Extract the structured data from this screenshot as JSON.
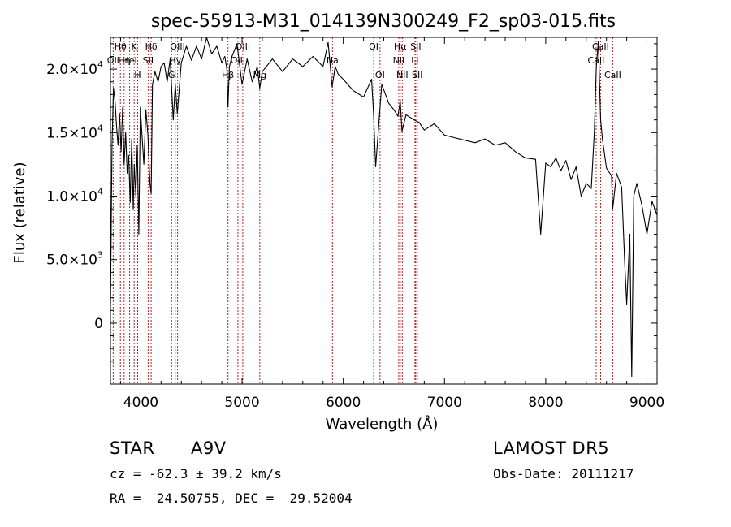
{
  "chart_data": {
    "type": "line",
    "title": "spec-55913-M31_014139N300249_F2_sp03-015.fits",
    "xlabel": "Wavelength (Å)",
    "ylabel": "Flux (relative)",
    "xlim": [
      3700,
      9100
    ],
    "ylim": [
      -4800,
      22500
    ],
    "grid": false,
    "x_ticks": [
      {
        "value": 4000,
        "label": "4000"
      },
      {
        "value": 5000,
        "label": "5000"
      },
      {
        "value": 6000,
        "label": "6000"
      },
      {
        "value": 7000,
        "label": "7000"
      },
      {
        "value": 8000,
        "label": "8000"
      },
      {
        "value": 9000,
        "label": "9000"
      }
    ],
    "y_ticks": [
      {
        "value": 0,
        "mant": "0",
        "exp": ""
      },
      {
        "value": 5000,
        "mant": "5.0×10",
        "exp": "3"
      },
      {
        "value": 10000,
        "mant": "1.0×10",
        "exp": "4"
      },
      {
        "value": 15000,
        "mant": "1.5×10",
        "exp": "4"
      },
      {
        "value": 20000,
        "mant": "2.0×10",
        "exp": "4"
      }
    ],
    "x": [
      3700,
      3715,
      3730,
      3745,
      3760,
      3775,
      3790,
      3805,
      3820,
      3835,
      3850,
      3865,
      3880,
      3895,
      3910,
      3925,
      3935,
      3950,
      3965,
      3980,
      3995,
      4010,
      4030,
      4050,
      4070,
      4090,
      4102,
      4115,
      4140,
      4170,
      4200,
      4230,
      4260,
      4290,
      4320,
      4340,
      4360,
      4400,
      4450,
      4500,
      4550,
      4600,
      4650,
      4700,
      4750,
      4800,
      4830,
      4850,
      4861,
      4875,
      4900,
      4950,
      5000,
      5050,
      5100,
      5150,
      5175,
      5200,
      5300,
      5400,
      5500,
      5600,
      5700,
      5800,
      5850,
      5890,
      5920,
      5950,
      6000,
      6100,
      6200,
      6280,
      6300,
      6320,
      6380,
      6450,
      6500,
      6540,
      6563,
      6580,
      6620,
      6700,
      6750,
      6800,
      6900,
      7000,
      7100,
      7200,
      7300,
      7400,
      7500,
      7600,
      7700,
      7800,
      7900,
      7950,
      8000,
      8050,
      8100,
      8150,
      8200,
      8250,
      8300,
      8350,
      8400,
      8450,
      8480,
      8500,
      8520,
      8542,
      8560,
      8600,
      8650,
      8662,
      8700,
      8750,
      8780,
      8800,
      8830,
      8850,
      8870,
      8900,
      8950,
      9000,
      9050,
      9100
    ],
    "values": [
      1200,
      14000,
      18500,
      17500,
      15500,
      14000,
      16500,
      13500,
      17000,
      12500,
      15000,
      11800,
      13200,
      9500,
      14500,
      9000,
      12500,
      10000,
      14000,
      7000,
      17000,
      15000,
      12500,
      16800,
      14800,
      11000,
      10200,
      18800,
      19800,
      19000,
      20200,
      20500,
      19000,
      20800,
      16000,
      18800,
      16500,
      20500,
      21800,
      20700,
      21800,
      20800,
      22500,
      21200,
      21800,
      20500,
      21000,
      20000,
      17000,
      20200,
      21000,
      22000,
      18800,
      20800,
      19000,
      20200,
      18500,
      19800,
      20800,
      19800,
      20800,
      20200,
      21000,
      20200,
      22100,
      18600,
      20200,
      19600,
      19200,
      18300,
      17800,
      19200,
      16400,
      12300,
      18800,
      17300,
      16800,
      16300,
      17500,
      15100,
      16400,
      16000,
      15800,
      15200,
      15700,
      14800,
      14600,
      14400,
      14200,
      14500,
      14000,
      14200,
      13500,
      13000,
      12900,
      7000,
      12600,
      12300,
      13000,
      12000,
      12800,
      11300,
      12300,
      10000,
      11000,
      10600,
      15000,
      20200,
      22200,
      16000,
      14500,
      12200,
      11600,
      9000,
      11800,
      10700,
      4800,
      1500,
      7000,
      -4200,
      10000,
      11000,
      9300,
      7000,
      9600,
      8500
    ],
    "lines": [
      {
        "name": "Hθ",
        "wl": 3798,
        "row": 1
      },
      {
        "name": "OII",
        "wl": 3727,
        "row": 2
      },
      {
        "name": "Hη",
        "wl": 3835,
        "row": 2
      },
      {
        "name": "K",
        "wl": 3934,
        "row": 1
      },
      {
        "name": "HeI",
        "wl": 3889,
        "row": 2
      },
      {
        "name": "H",
        "wl": 3969,
        "row": 3
      },
      {
        "name": "Hδ",
        "wl": 4102,
        "row": 1
      },
      {
        "name": "SII",
        "wl": 4072,
        "row": 2
      },
      {
        "name": "OIII",
        "wl": 4363,
        "row": 1
      },
      {
        "name": "Hγ",
        "wl": 4340,
        "row": 2
      },
      {
        "name": "G",
        "wl": 4304,
        "row": 3
      },
      {
        "name": "OIII",
        "wl": 5007,
        "row": 1
      },
      {
        "name": "OIII",
        "wl": 4959,
        "row": 2
      },
      {
        "name": "Hβ",
        "wl": 4861,
        "row": 3
      },
      {
        "name": "Mg",
        "wl": 5175,
        "row": 3
      },
      {
        "name": "Na",
        "wl": 5893,
        "row": 2
      },
      {
        "name": "OI",
        "wl": 6300,
        "row": 1
      },
      {
        "name": "OI",
        "wl": 6363,
        "row": 3
      },
      {
        "name": "Hα",
        "wl": 6563,
        "row": 1
      },
      {
        "name": "SII",
        "wl": 6716,
        "row": 1
      },
      {
        "name": "NII",
        "wl": 6548,
        "row": 2
      },
      {
        "name": "Li",
        "wl": 6708,
        "row": 2
      },
      {
        "name": "NII",
        "wl": 6583,
        "row": 3
      },
      {
        "name": "SII",
        "wl": 6731,
        "row": 3
      },
      {
        "name": "CaII",
        "wl": 8542,
        "row": 1
      },
      {
        "name": "CaII",
        "wl": 8498,
        "row": 2
      },
      {
        "name": "CaII",
        "wl": 8662,
        "row": 3
      }
    ],
    "colors": {
      "spectrum": "#000000",
      "lines": "#b22222"
    }
  },
  "info": {
    "class": "STAR",
    "subclass": "A9V",
    "survey": "LAMOST DR5",
    "cz": "cz = -62.3 ± 39.2 km/s",
    "obs_date": "Obs-Date: 20111217",
    "radec": "RA =  24.50755, DEC =  29.52004"
  }
}
